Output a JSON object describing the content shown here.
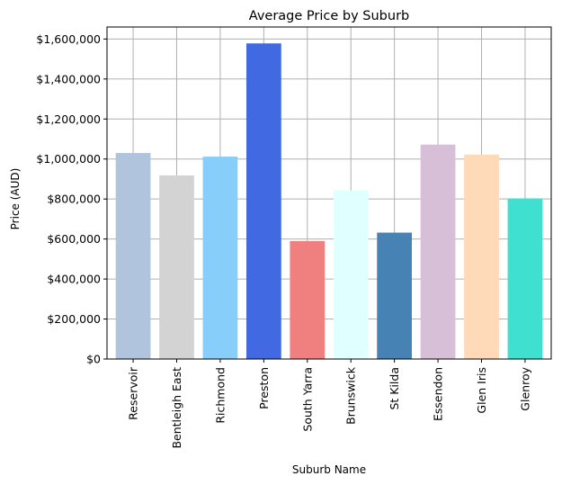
{
  "chart_data": {
    "type": "bar",
    "title": "Average Price by Suburb",
    "xlabel": "Suburb Name",
    "ylabel": "Price (AUD)",
    "categories": [
      "Reservoir",
      "Bentleigh East",
      "Richmond",
      "Preston",
      "South Yarra",
      "Brunswick",
      "St Kilda",
      "Essendon",
      "Glen Iris",
      "Glenroy"
    ],
    "values": [
      1030000,
      918000,
      1012000,
      1578000,
      590000,
      843000,
      632000,
      1072000,
      1022000,
      803000
    ],
    "colors": [
      "#b0c4de",
      "#d3d3d3",
      "#87cefa",
      "#4169e1",
      "#f08080",
      "#e0ffff",
      "#4682b4",
      "#d8bfd8",
      "#ffdab9",
      "#40e0d0"
    ],
    "ylim": [
      0,
      1660000
    ],
    "yticks": [
      0,
      200000,
      400000,
      600000,
      800000,
      1000000,
      1200000,
      1400000,
      1600000
    ],
    "ytick_labels": [
      "$0",
      "$200,000",
      "$400,000",
      "$600,000",
      "$800,000",
      "$1,000,000",
      "$1,200,000",
      "$1,400,000",
      "$1,600,000"
    ],
    "grid": true,
    "grid_color": "#b0b0b0"
  }
}
